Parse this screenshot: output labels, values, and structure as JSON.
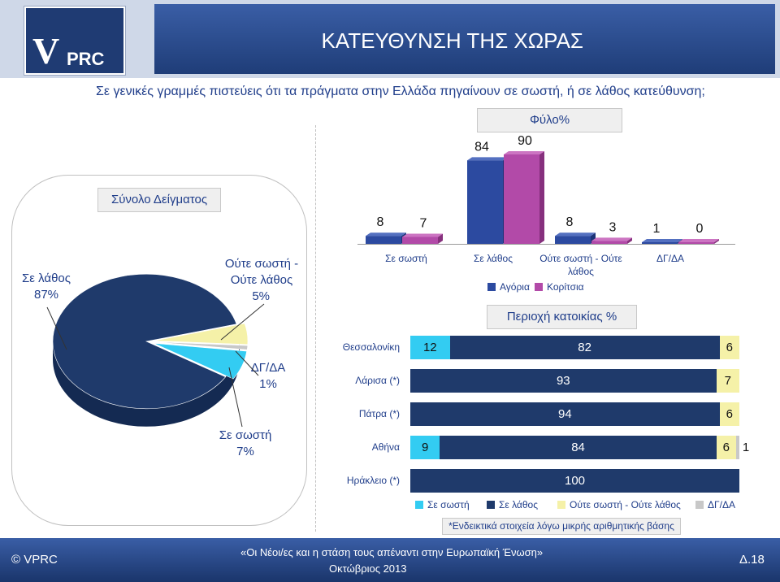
{
  "header": {
    "logo_text_v": "V",
    "logo_text_prc": "PRC",
    "title": "ΚΑΤΕΥΘΥΝΣΗ ΤΗΣ ΧΩΡΑΣ"
  },
  "question": "Σε γενικές γραμμές πιστεύεις ότι τα πράγματα στην Ελλάδα πηγαίνουν σε σωστή, ή σε λάθος κατεύθυνση;",
  "pie_section": {
    "title": "Σύνολο Δείγματος",
    "labels": {
      "wrong_name": "Σε λάθος",
      "wrong_pct": "87%",
      "neither_name": "Ούτε σωστή - Ούτε λάθος",
      "neither_pct": "5%",
      "dk_name": "ΔΓ/ΔΑ",
      "dk_pct": "1%",
      "right_name": "Σε σωστή",
      "right_pct": "7%"
    }
  },
  "gender_section": {
    "title": "Φύλο%",
    "legend_boys": "Αγόρια",
    "legend_girls": "Κορίτσια",
    "categories": [
      "Σε σωστή",
      "Σε λάθος",
      "Ούτε σωστή - Ούτε λάθος",
      "ΔΓ/ΔΑ"
    ],
    "boys": [
      8,
      84,
      8,
      1
    ],
    "girls": [
      7,
      90,
      3,
      0
    ]
  },
  "region_section": {
    "title": "Περιοχή κατοικίας %",
    "legend": [
      "Σε σωστή",
      "Σε λάθος",
      "Ούτε σωστή - Ούτε λάθος",
      "ΔΓ/ΔΑ"
    ],
    "rows": [
      {
        "city": "Θεσσαλονίκη",
        "values": [
          12,
          82,
          6,
          0
        ]
      },
      {
        "city": "Λάρισα (*)",
        "values": [
          0,
          93,
          7,
          0
        ]
      },
      {
        "city": "Πάτρα (*)",
        "values": [
          0,
          94,
          6,
          0
        ]
      },
      {
        "city": "Αθήνα",
        "values": [
          9,
          84,
          6,
          1
        ]
      },
      {
        "city": "Ηράκλειο (*)",
        "values": [
          0,
          100,
          0,
          0
        ]
      }
    ],
    "note": "*Ενδεικτικά στοιχεία λόγω μικρής αριθμητικής βάσης"
  },
  "colors": {
    "right": "#33ccf2",
    "wrong": "#1f3a6b",
    "neither": "#f5f1a8",
    "dk": "#c8c8c8",
    "boys": "#2c4aa0",
    "girls": "#b24aa8"
  },
  "chart_data": [
    {
      "type": "pie",
      "title": "Σύνολο Δείγματος",
      "categories": [
        "Σε λάθος",
        "Ούτε σωστή - Ούτε λάθος",
        "ΔΓ/ΔΑ",
        "Σε σωστή"
      ],
      "values": [
        87,
        5,
        1,
        7
      ]
    },
    {
      "type": "bar",
      "title": "Φύλο%",
      "categories": [
        "Σε σωστή",
        "Σε λάθος",
        "Ούτε σωστή - Ούτε λάθος",
        "ΔΓ/ΔΑ"
      ],
      "series": [
        {
          "name": "Αγόρια",
          "values": [
            8,
            84,
            8,
            1
          ]
        },
        {
          "name": "Κορίτσια",
          "values": [
            7,
            90,
            3,
            0
          ]
        }
      ],
      "legend": "bottom"
    },
    {
      "type": "bar",
      "title": "Περιοχή κατοικίας %",
      "stacked": true,
      "orientation": "horizontal",
      "categories": [
        "Θεσσαλονίκη",
        "Λάρισα (*)",
        "Πάτρα (*)",
        "Αθήνα",
        "Ηράκλειο (*)"
      ],
      "series": [
        {
          "name": "Σε σωστή",
          "values": [
            12,
            0,
            0,
            9,
            0
          ]
        },
        {
          "name": "Σε λάθος",
          "values": [
            82,
            93,
            94,
            84,
            100
          ]
        },
        {
          "name": "Ούτε σωστή - Ούτε λάθος",
          "values": [
            6,
            7,
            6,
            6,
            0
          ]
        },
        {
          "name": "ΔΓ/ΔΑ",
          "values": [
            0,
            0,
            0,
            1,
            0
          ]
        }
      ],
      "legend": "bottom"
    }
  ],
  "footer": {
    "copyright": "© VPRC",
    "line1": "«Οι Νέοι/ες και η στάση τους απέναντι στην Ευρωπαϊκή Ένωση»",
    "line2": "Οκτώβριος 2013",
    "page": "Δ.18"
  }
}
